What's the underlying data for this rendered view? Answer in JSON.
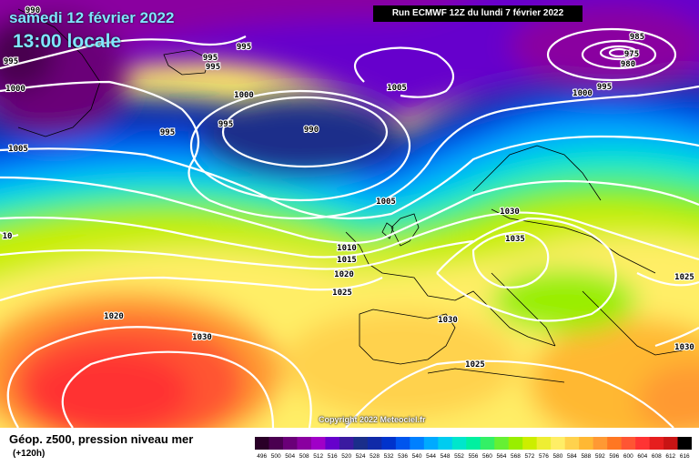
{
  "header": {
    "date": "samedi 12 février 2022",
    "time": "13:00 locale",
    "run": "Run ECMWF 12Z du lundi 7 février 2022"
  },
  "footer": {
    "product": "Géop. z500, pression niveau mer",
    "lead": "(+120h)",
    "copyright": "Copyright 2022 Meteociel.fr"
  },
  "legend": {
    "labels": [
      "496",
      "500",
      "504",
      "508",
      "512",
      "516",
      "520",
      "524",
      "528",
      "532",
      "536",
      "540",
      "544",
      "548",
      "552",
      "556",
      "560",
      "564",
      "568",
      "572",
      "576",
      "580",
      "584",
      "588",
      "592",
      "596",
      "600",
      "604",
      "608",
      "612",
      "616"
    ],
    "colors": [
      "#2a0028",
      "#4a0050",
      "#6a0078",
      "#8a00a0",
      "#a000c8",
      "#6600cc",
      "#3a1aa0",
      "#1a2e8a",
      "#102aa8",
      "#0033cc",
      "#0055ee",
      "#0080ff",
      "#00aaff",
      "#00ccf0",
      "#00e6cc",
      "#00f0a0",
      "#33f066",
      "#66f033",
      "#99ee00",
      "#ccee00",
      "#eeee33",
      "#ffee66",
      "#ffd24d",
      "#ffb833",
      "#ff9933",
      "#ff7722",
      "#ff5533",
      "#ff3333",
      "#e61e1e",
      "#c81414",
      "#000000"
    ]
  },
  "isobars": [
    {
      "value": "990"
    },
    {
      "value": "995"
    },
    {
      "value": "995"
    },
    {
      "value": "995"
    },
    {
      "value": "1000"
    },
    {
      "value": "1005"
    },
    {
      "value": "995"
    },
    {
      "value": "995"
    },
    {
      "value": "1000"
    },
    {
      "value": "995"
    },
    {
      "value": "990"
    },
    {
      "value": "1005"
    },
    {
      "value": "985"
    },
    {
      "value": "975"
    },
    {
      "value": "980"
    },
    {
      "value": "995"
    },
    {
      "value": "1000"
    },
    {
      "value": "1005"
    },
    {
      "value": "1030"
    },
    {
      "value": "1035"
    },
    {
      "value": "1010"
    },
    {
      "value": "1015"
    },
    {
      "value": "1020"
    },
    {
      "value": "1025"
    },
    {
      "value": "10"
    },
    {
      "value": "1020"
    },
    {
      "value": "1030"
    },
    {
      "value": "1030"
    },
    {
      "value": "1025"
    },
    {
      "value": "1025"
    },
    {
      "value": "1030"
    }
  ],
  "colors": {
    "title": "#7fe6ff",
    "isobar": "#ffffff"
  }
}
